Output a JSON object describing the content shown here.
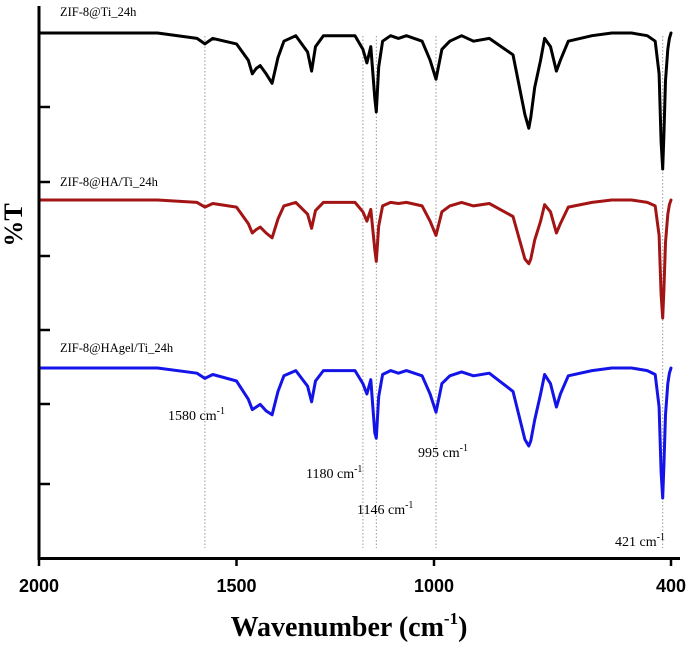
{
  "chart_data": {
    "type": "line",
    "title": "",
    "xlabel": "Wavenumber (cm",
    "xlabel_sup": "-1",
    "xlabel_close": ")",
    "ylabel": "%T",
    "xlim": [
      2000,
      400
    ],
    "xticks": [
      "2000",
      "1500",
      "1000",
      "400"
    ],
    "xtick_values": [
      2000,
      1500,
      1000,
      400
    ],
    "grid": false,
    "series": [
      {
        "name": "ZIF-8@Ti_24h",
        "color": "#000000",
        "x": [
          2000,
          1700,
          1600,
          1580,
          1560,
          1500,
          1470,
          1460,
          1450,
          1440,
          1425,
          1410,
          1395,
          1380,
          1350,
          1320,
          1310,
          1300,
          1280,
          1200,
          1180,
          1170,
          1160,
          1150,
          1146,
          1140,
          1130,
          1110,
          1090,
          1070,
          1030,
          1010,
          995,
          980,
          960,
          930,
          900,
          860,
          800,
          770,
          760,
          755,
          745,
          730,
          720,
          705,
          690,
          680,
          660,
          600,
          550,
          500,
          460,
          440,
          430,
          425,
          421,
          418,
          414,
          408,
          404,
          400
        ],
        "values": [
          0,
          0,
          0.04,
          0.08,
          0.04,
          0.08,
          0.2,
          0.3,
          0.26,
          0.24,
          0.3,
          0.37,
          0.18,
          0.06,
          0.02,
          0.14,
          0.28,
          0.1,
          0.02,
          0.02,
          0.12,
          0.22,
          0.1,
          0.48,
          0.58,
          0.25,
          0.06,
          0.02,
          0.04,
          0.02,
          0.06,
          0.2,
          0.34,
          0.12,
          0.06,
          0.02,
          0.06,
          0.04,
          0.16,
          0.6,
          0.7,
          0.62,
          0.4,
          0.2,
          0.04,
          0.1,
          0.28,
          0.2,
          0.06,
          0.02,
          0,
          0,
          0.02,
          0.06,
          0.3,
          0.8,
          1.0,
          0.75,
          0.35,
          0.12,
          0.04,
          0
        ]
      },
      {
        "name": "ZIF-8@HA/Ti_24h",
        "color": "#a31515",
        "x": [
          2000,
          1700,
          1600,
          1580,
          1560,
          1500,
          1470,
          1460,
          1450,
          1440,
          1425,
          1410,
          1395,
          1380,
          1350,
          1320,
          1310,
          1300,
          1280,
          1200,
          1180,
          1170,
          1160,
          1150,
          1146,
          1140,
          1130,
          1110,
          1090,
          1070,
          1030,
          1010,
          995,
          980,
          960,
          930,
          900,
          860,
          800,
          770,
          760,
          755,
          745,
          730,
          720,
          705,
          690,
          680,
          660,
          600,
          550,
          500,
          460,
          440,
          430,
          425,
          421,
          418,
          414,
          408,
          404,
          400
        ],
        "values": [
          0,
          0,
          0.02,
          0.06,
          0.03,
          0.06,
          0.2,
          0.28,
          0.25,
          0.23,
          0.28,
          0.32,
          0.16,
          0.05,
          0.02,
          0.12,
          0.24,
          0.09,
          0.02,
          0.02,
          0.1,
          0.18,
          0.08,
          0.42,
          0.52,
          0.22,
          0.05,
          0.02,
          0.03,
          0.02,
          0.05,
          0.18,
          0.3,
          0.1,
          0.05,
          0.02,
          0.05,
          0.03,
          0.14,
          0.5,
          0.54,
          0.5,
          0.34,
          0.18,
          0.04,
          0.1,
          0.28,
          0.2,
          0.06,
          0.02,
          0,
          0,
          0.02,
          0.05,
          0.3,
          0.8,
          1.0,
          0.76,
          0.36,
          0.12,
          0.04,
          0
        ]
      },
      {
        "name": "ZIF-8@HAgel/Ti_24h",
        "color": "#1414e8",
        "x": [
          2000,
          1700,
          1600,
          1580,
          1560,
          1500,
          1470,
          1460,
          1450,
          1440,
          1425,
          1410,
          1395,
          1380,
          1350,
          1320,
          1310,
          1300,
          1280,
          1200,
          1180,
          1170,
          1160,
          1150,
          1146,
          1140,
          1130,
          1110,
          1090,
          1070,
          1030,
          1010,
          995,
          980,
          960,
          930,
          900,
          860,
          800,
          770,
          760,
          755,
          745,
          730,
          720,
          705,
          690,
          680,
          660,
          600,
          550,
          500,
          460,
          440,
          430,
          425,
          421,
          418,
          414,
          408,
          404,
          400
        ],
        "values": [
          0,
          0,
          0.04,
          0.08,
          0.05,
          0.1,
          0.24,
          0.32,
          0.3,
          0.28,
          0.33,
          0.36,
          0.18,
          0.06,
          0.02,
          0.14,
          0.26,
          0.1,
          0.02,
          0.02,
          0.12,
          0.2,
          0.09,
          0.5,
          0.54,
          0.22,
          0.05,
          0.02,
          0.04,
          0.02,
          0.06,
          0.2,
          0.34,
          0.12,
          0.06,
          0.03,
          0.06,
          0.04,
          0.18,
          0.55,
          0.6,
          0.56,
          0.4,
          0.2,
          0.05,
          0.12,
          0.3,
          0.2,
          0.06,
          0.02,
          0,
          0,
          0.02,
          0.05,
          0.3,
          0.8,
          1.0,
          0.75,
          0.36,
          0.12,
          0.04,
          0
        ]
      }
    ],
    "reference_lines": [
      1580,
      1180,
      1146,
      995,
      421
    ],
    "annotations": [
      {
        "base": "1580 cm",
        "sup": "-1",
        "x": 1580
      },
      {
        "base": "1180 cm",
        "sup": "-1",
        "x": 1180
      },
      {
        "base": "1146 cm",
        "sup": "-1",
        "x": 1146
      },
      {
        "base": "995 cm",
        "sup": "-1",
        "x": 995
      },
      {
        "base": "421 cm",
        "sup": "-1",
        "x": 421
      }
    ]
  }
}
